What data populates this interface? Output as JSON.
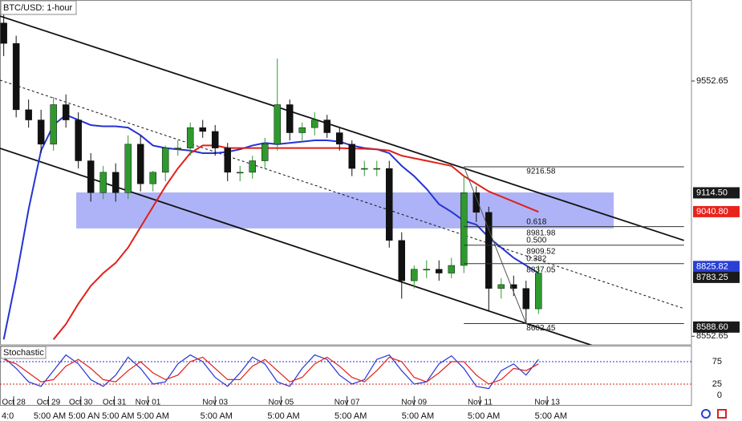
{
  "chart_data": {
    "type": "candlestick",
    "title": "BTC/USD: 1-hour",
    "xlim": [
      -0.3,
      55.3
    ],
    "ylim": [
      8519,
      9870
    ],
    "xticks": [
      {
        "value": 0.8,
        "label": "Oct 28"
      },
      {
        "value": 3.6,
        "label": "Oct 29"
      },
      {
        "value": 6.2,
        "label": "Oct 30"
      },
      {
        "value": 8.9,
        "label": "Oct 31"
      },
      {
        "value": 11.6,
        "label": "Nov 01"
      },
      {
        "value": 17,
        "label": "Nov 03"
      },
      {
        "value": 22.3,
        "label": "Nov 05"
      },
      {
        "value": 27.6,
        "label": "Nov 07"
      },
      {
        "value": 33,
        "label": "Nov 09"
      },
      {
        "value": 38.3,
        "label": "Nov 11"
      },
      {
        "value": 43.7,
        "label": "Nov 13"
      }
    ],
    "time_ticks": [
      {
        "value": -0.17,
        "label": "4:0"
      },
      {
        "value": 2.4,
        "label": "5:00 AM"
      },
      {
        "value": 5.2,
        "label": "5:00 AN"
      },
      {
        "value": 7.9,
        "label": "5:00 AM"
      },
      {
        "value": 10.7,
        "label": "5:00 AM"
      },
      {
        "value": 15.8,
        "label": "5:00 AM"
      },
      {
        "value": 21.2,
        "label": "5:00 AM"
      },
      {
        "value": 26.6,
        "label": "5:00 AM"
      },
      {
        "value": 32,
        "label": "5:00 AM"
      },
      {
        "value": 37.3,
        "label": "5:00 AM"
      },
      {
        "value": 42.7,
        "label": "5:00 AM"
      }
    ],
    "yticks": [
      9552.65,
      8552.65
    ],
    "price_markers": [
      {
        "value": 9114.5,
        "label": "9114.50",
        "color": "#1a1a1a"
      },
      {
        "value": 9040.8,
        "label": "9040.80",
        "color": "#e8231c"
      },
      {
        "value": 8825.82,
        "label": "8825.82",
        "color": "#2a3fd6"
      },
      {
        "value": 8783.25,
        "label": "8783.25",
        "color": "#1a1a1a"
      },
      {
        "value": 8588.6,
        "label": "8588.60",
        "color": "#1a1a1a"
      }
    ],
    "up_color": "#2e9a2e",
    "down_color": "#111111",
    "open": [
      9780,
      9700,
      9440,
      9400,
      9305,
      9460,
      9400,
      9240,
      9115,
      9195,
      9115,
      9305,
      9150,
      9195,
      9290,
      9290,
      9370,
      9355,
      9290,
      9195,
      9195,
      9240,
      9305,
      9460,
      9350,
      9370,
      9400,
      9350,
      9305,
      9210,
      9210,
      9210,
      8928,
      8770,
      8815,
      8815,
      8800,
      8830,
      9115,
      9038,
      8740,
      8755,
      8740,
      8660
    ],
    "high": [
      9840,
      9730,
      9480,
      9440,
      9490,
      9500,
      9430,
      9270,
      9220,
      9230,
      9340,
      9340,
      9200,
      9300,
      9320,
      9390,
      9400,
      9380,
      9310,
      9220,
      9260,
      9330,
      9640,
      9480,
      9390,
      9430,
      9420,
      9370,
      9320,
      9240,
      9240,
      9240,
      8960,
      8830,
      8850,
      8850,
      8860,
      9180,
      9140,
      9060,
      8780,
      8790,
      8770,
      8830
    ],
    "low": [
      9650,
      9410,
      9370,
      9270,
      9280,
      9370,
      9210,
      9080,
      9090,
      9080,
      9090,
      9120,
      9120,
      9160,
      9260,
      9260,
      9330,
      9260,
      9160,
      9160,
      9170,
      9210,
      9280,
      9320,
      9320,
      9340,
      9330,
      9280,
      9180,
      9180,
      9180,
      8900,
      8700,
      8740,
      8780,
      8770,
      8780,
      8800,
      9000,
      8650,
      8700,
      8710,
      8600,
      8640
    ],
    "close": [
      9700,
      9440,
      9400,
      9305,
      9460,
      9400,
      9240,
      9115,
      9195,
      9115,
      9305,
      9150,
      9195,
      9290,
      9290,
      9370,
      9355,
      9290,
      9195,
      9195,
      9240,
      9305,
      9460,
      9350,
      9370,
      9400,
      9350,
      9305,
      9210,
      9210,
      9210,
      8928,
      8770,
      8815,
      8815,
      8800,
      8830,
      9115,
      9038,
      8740,
      8755,
      8740,
      8660,
      8800
    ],
    "moving_averages": [
      {
        "color": "#2433d4",
        "values": [
          8540,
          8780,
          9050,
          9280,
          9380,
          9420,
          9400,
          9380,
          9375,
          9375,
          9370,
          9340,
          9300,
          9290,
          9285,
          9280,
          9270,
          9270,
          9275,
          9285,
          9300,
          9310,
          9305,
          9310,
          9315,
          9320,
          9320,
          9315,
          9300,
          9290,
          9285,
          9270,
          9220,
          9180,
          9130,
          9070,
          9040,
          9005,
          8990,
          8940,
          8900,
          8860,
          8830,
          8800
        ]
      },
      {
        "color": "#e0201a",
        "values": [
          null,
          null,
          null,
          null,
          8540,
          8600,
          8680,
          8750,
          8800,
          8840,
          8900,
          8980,
          9060,
          9140,
          9210,
          9270,
          9300,
          9300,
          9290,
          9290,
          9290,
          9290,
          9290,
          9290,
          9290,
          9290,
          9290,
          9290,
          9288,
          9287,
          9285,
          9280,
          9260,
          9250,
          9240,
          9230,
          9220,
          9180,
          9150,
          9120,
          9100,
          9080,
          9060,
          9040
        ]
      }
    ],
    "channel_x": [
      -0.3,
      54.7
    ],
    "channel_upper": [
      9807,
      8928
    ],
    "channel_lower": [
      9289,
      8397
    ],
    "channel_mid": [
      9556,
      8661
    ],
    "zone": {
      "x": [
        5.83,
        49.05
      ],
      "y": [
        9116,
        8975
      ],
      "color": "#9fa6f5"
    },
    "swing": {
      "x": [
        37,
        42
      ],
      "y": [
        9216.58,
        8602.45
      ]
    },
    "fib_start": 37,
    "fib_end": 54.7,
    "fib_levels": [
      {
        "value": 9216.58
      },
      {
        "value": 8981.98,
        "ratio": 0.618
      },
      {
        "value": 8909.52,
        "ratio": {
          "value": 0.5,
          "label": "0.500"
        }
      },
      {
        "value": 8837.05,
        "ratio": 0.382
      },
      {
        "value": 8602.45
      }
    ],
    "stochastic": {
      "title": "Stochastic",
      "ylim": [
        0,
        100
      ],
      "yticks": [
        75,
        25,
        0
      ],
      "k": {
        "color": "#2433d4",
        "values": [
          85,
          60,
          30,
          20,
          55,
          90,
          70,
          35,
          20,
          45,
          85,
          60,
          25,
          30,
          70,
          90,
          75,
          40,
          20,
          50,
          85,
          70,
          30,
          20,
          60,
          90,
          80,
          45,
          25,
          35,
          80,
          90,
          55,
          25,
          30,
          70,
          88,
          60,
          20,
          15,
          55,
          70,
          45,
          80
        ]
      },
      "d": {
        "color": "#e0201a",
        "values": [
          80,
          70,
          50,
          30,
          35,
          65,
          80,
          60,
          35,
          30,
          55,
          75,
          50,
          35,
          45,
          75,
          85,
          60,
          35,
          35,
          65,
          80,
          55,
          30,
          40,
          70,
          85,
          65,
          40,
          30,
          55,
          85,
          75,
          40,
          30,
          50,
          75,
          75,
          45,
          25,
          35,
          60,
          55,
          70
        ]
      }
    }
  }
}
